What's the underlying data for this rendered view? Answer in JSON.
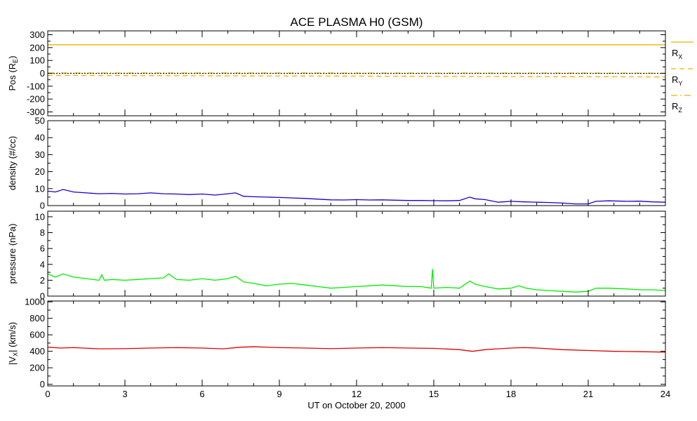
{
  "chart_data": {
    "title": "ACE PLASMA H0 (GSM)",
    "xlabel": "UT on October 20, 2000",
    "xlim": [
      0,
      24
    ],
    "x_ticks": [
      0,
      3,
      6,
      9,
      12,
      15,
      18,
      21,
      24
    ],
    "x_tick_labels": [
      "0",
      "3",
      "6",
      "9",
      "12",
      "15",
      "18",
      "21",
      "24"
    ],
    "panels": [
      {
        "id": "position",
        "type": "line",
        "ylabel": "Pos (R",
        "ylabel_sub": "E",
        "ylabel_end": ")",
        "ylim": [
          -330,
          330
        ],
        "y_ticks": [
          300,
          200,
          100,
          0,
          -100,
          -200,
          -300
        ],
        "y_tick_labels": [
          "300",
          "200",
          "100",
          "0",
          "-100",
          "-200",
          "-300"
        ],
        "legend": [
          {
            "main": "R",
            "sub": "X",
            "style": "solid"
          },
          {
            "main": "R",
            "sub": "Y",
            "style": "dashed"
          },
          {
            "main": "R",
            "sub": "Z",
            "style": "dashdot"
          }
        ],
        "series": [
          {
            "name": "RX",
            "color": "#e6b400",
            "style": "solid",
            "points": [
              [
                0,
                222
              ],
              [
                24,
                222
              ]
            ]
          },
          {
            "name": "RY",
            "color": "#ffaa00",
            "style": "dashed",
            "points": [
              [
                0,
                -16
              ],
              [
                2,
                -17
              ],
              [
                4,
                -18
              ],
              [
                6,
                -19
              ],
              [
                8,
                -20
              ],
              [
                10,
                -21
              ],
              [
                12,
                -22
              ],
              [
                14,
                -23
              ],
              [
                16,
                -24
              ],
              [
                18,
                -25
              ],
              [
                20,
                -26
              ],
              [
                22,
                -27
              ],
              [
                24,
                -28
              ]
            ]
          },
          {
            "name": "RZ",
            "color": "#e6b400",
            "style": "dashdot",
            "points": [
              [
                0,
                3
              ],
              [
                6,
                3
              ],
              [
                12,
                2
              ],
              [
                18,
                2
              ],
              [
                24,
                1
              ]
            ]
          }
        ]
      },
      {
        "id": "density",
        "type": "line",
        "ylabel": "density (#/cc)",
        "ylim": [
          0,
          50
        ],
        "y_ticks": [
          0,
          10,
          20,
          30,
          40,
          50
        ],
        "y_tick_labels": [
          "0",
          "10",
          "20",
          "30",
          "40",
          "50"
        ],
        "series": [
          {
            "name": "density",
            "color": "#1a00cc",
            "style": "solid",
            "points": [
              [
                0,
                8.5
              ],
              [
                0.3,
                8.0
              ],
              [
                0.6,
                9.5
              ],
              [
                1.0,
                8.0
              ],
              [
                1.5,
                7.5
              ],
              [
                2.0,
                7.0
              ],
              [
                2.5,
                7.2
              ],
              [
                3.0,
                6.8
              ],
              [
                3.5,
                7.0
              ],
              [
                4.0,
                7.5
              ],
              [
                4.5,
                7.0
              ],
              [
                5.0,
                6.8
              ],
              [
                5.5,
                6.5
              ],
              [
                6.0,
                6.8
              ],
              [
                6.5,
                6.2
              ],
              [
                7.0,
                7.0
              ],
              [
                7.3,
                7.5
              ],
              [
                7.6,
                5.5
              ],
              [
                8.0,
                5.2
              ],
              [
                8.5,
                5.0
              ],
              [
                9.0,
                4.8
              ],
              [
                9.5,
                4.5
              ],
              [
                10.0,
                4.2
              ],
              [
                10.5,
                3.8
              ],
              [
                11.0,
                3.4
              ],
              [
                11.5,
                3.3
              ],
              [
                12.0,
                3.5
              ],
              [
                12.5,
                3.3
              ],
              [
                13.0,
                3.4
              ],
              [
                13.5,
                3.2
              ],
              [
                14.0,
                3.0
              ],
              [
                14.5,
                3.0
              ],
              [
                15.0,
                2.9
              ],
              [
                15.5,
                2.8
              ],
              [
                16.0,
                3.0
              ],
              [
                16.4,
                5.0
              ],
              [
                16.6,
                4.0
              ],
              [
                17.0,
                3.5
              ],
              [
                17.5,
                2.0
              ],
              [
                18.0,
                2.5
              ],
              [
                18.5,
                2.2
              ],
              [
                19.0,
                2.0
              ],
              [
                19.5,
                1.8
              ],
              [
                20.0,
                1.5
              ],
              [
                20.5,
                1.0
              ],
              [
                21.0,
                1.0
              ],
              [
                21.3,
                2.5
              ],
              [
                21.8,
                2.8
              ],
              [
                22.5,
                2.5
              ],
              [
                23.0,
                2.6
              ],
              [
                23.5,
                2.2
              ],
              [
                24.0,
                2.0
              ]
            ]
          }
        ]
      },
      {
        "id": "pressure",
        "type": "line",
        "ylabel": "pressure (nPa)",
        "ylim": [
          0,
          10.7
        ],
        "y_ticks": [
          0,
          2,
          4,
          6,
          8,
          10
        ],
        "y_tick_labels": [
          "0",
          "2",
          "4",
          "6",
          "8",
          "10"
        ],
        "series": [
          {
            "name": "pressure",
            "color": "#00ee00",
            "style": "solid",
            "points": [
              [
                0,
                2.8
              ],
              [
                0.3,
                2.4
              ],
              [
                0.6,
                2.8
              ],
              [
                1.0,
                2.4
              ],
              [
                1.5,
                2.2
              ],
              [
                2.0,
                2.0
              ],
              [
                2.1,
                2.7
              ],
              [
                2.2,
                2.0
              ],
              [
                2.5,
                2.1
              ],
              [
                3.0,
                2.0
              ],
              [
                3.5,
                2.1
              ],
              [
                4.0,
                2.2
              ],
              [
                4.5,
                2.3
              ],
              [
                4.7,
                2.8
              ],
              [
                5.0,
                2.1
              ],
              [
                5.5,
                2.0
              ],
              [
                6.0,
                2.2
              ],
              [
                6.5,
                2.0
              ],
              [
                7.0,
                2.2
              ],
              [
                7.3,
                2.5
              ],
              [
                7.6,
                1.8
              ],
              [
                8.0,
                1.6
              ],
              [
                8.5,
                1.3
              ],
              [
                9.0,
                1.5
              ],
              [
                9.5,
                1.6
              ],
              [
                10.0,
                1.4
              ],
              [
                10.5,
                1.2
              ],
              [
                11.0,
                1.0
              ],
              [
                11.5,
                1.1
              ],
              [
                12.0,
                1.2
              ],
              [
                12.5,
                1.3
              ],
              [
                13.0,
                1.4
              ],
              [
                13.5,
                1.3
              ],
              [
                14.0,
                1.2
              ],
              [
                14.5,
                1.2
              ],
              [
                14.9,
                1.0
              ],
              [
                14.95,
                3.4
              ],
              [
                15.0,
                1.0
              ],
              [
                15.5,
                1.1
              ],
              [
                16.0,
                1.0
              ],
              [
                16.4,
                1.9
              ],
              [
                16.6,
                1.5
              ],
              [
                17.0,
                1.2
              ],
              [
                17.5,
                0.9
              ],
              [
                18.0,
                1.0
              ],
              [
                18.3,
                1.3
              ],
              [
                18.6,
                1.0
              ],
              [
                19.0,
                0.8
              ],
              [
                19.5,
                0.7
              ],
              [
                20.0,
                0.6
              ],
              [
                20.5,
                0.5
              ],
              [
                21.0,
                0.6
              ],
              [
                21.3,
                1.0
              ],
              [
                21.8,
                1.0
              ],
              [
                22.5,
                0.9
              ],
              [
                23.0,
                0.8
              ],
              [
                23.5,
                0.8
              ],
              [
                24.0,
                0.7
              ]
            ]
          }
        ]
      },
      {
        "id": "velocity",
        "type": "line",
        "ylabel": "|V",
        "ylabel_sub": "X",
        "ylabel_end": "| (km/s)",
        "ylim": [
          -20,
          1010
        ],
        "y_ticks": [
          0,
          200,
          400,
          600,
          800,
          1000
        ],
        "y_tick_labels": [
          "0",
          "200",
          "400",
          "600",
          "800",
          "1000"
        ],
        "series": [
          {
            "name": "|VX|",
            "color": "#dd0000",
            "style": "solid",
            "points": [
              [
                0,
                450
              ],
              [
                0.5,
                440
              ],
              [
                1.0,
                445
              ],
              [
                2.0,
                430
              ],
              [
                3.0,
                432
              ],
              [
                4.0,
                440
              ],
              [
                5.0,
                445
              ],
              [
                6.0,
                440
              ],
              [
                6.8,
                430
              ],
              [
                7.5,
                450
              ],
              [
                8.0,
                455
              ],
              [
                9.0,
                445
              ],
              [
                10.0,
                440
              ],
              [
                11.0,
                432
              ],
              [
                12.0,
                440
              ],
              [
                13.0,
                445
              ],
              [
                14.0,
                440
              ],
              [
                15.0,
                435
              ],
              [
                16.0,
                420
              ],
              [
                16.5,
                400
              ],
              [
                17.0,
                420
              ],
              [
                17.5,
                430
              ],
              [
                18.0,
                440
              ],
              [
                18.5,
                445
              ],
              [
                19.0,
                440
              ],
              [
                20.0,
                420
              ],
              [
                21.0,
                410
              ],
              [
                22.0,
                400
              ],
              [
                23.0,
                395
              ],
              [
                24.0,
                390
              ]
            ]
          }
        ]
      }
    ]
  }
}
